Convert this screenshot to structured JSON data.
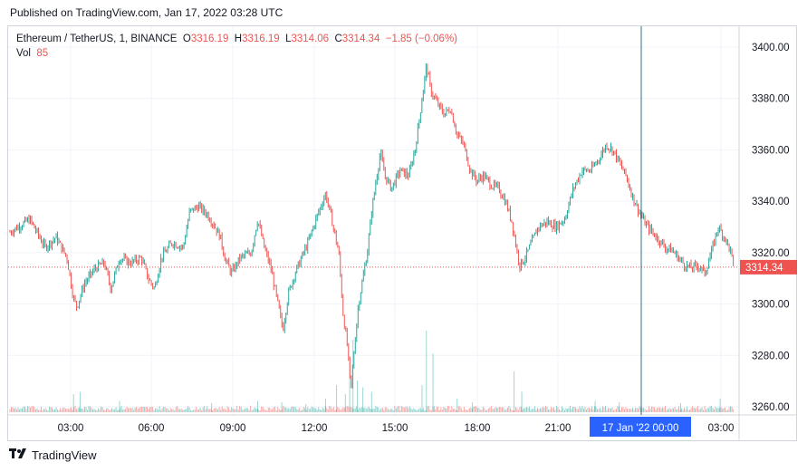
{
  "header": {
    "published": "Published on TradingView.com, Jan 17, 2022 03:28 UTC"
  },
  "legend": {
    "symbol": "Ethereum / TetherUS, 1, BINANCE",
    "o_label": "O",
    "o_value": "3316.19",
    "h_label": "H",
    "h_value": "3316.19",
    "l_label": "L",
    "l_value": "3314.06",
    "c_label": "C",
    "c_value": "3314.34",
    "change": "−1.85 (−0.06%)",
    "vol_label": "Vol",
    "vol_value": "85"
  },
  "footer": {
    "brand": "TradingView",
    "logo_icon": "tradingview-logo-icon"
  },
  "chart_data": {
    "type": "candlestick",
    "symbol": "Ethereum / TetherUS",
    "interval": "1",
    "exchange": "BINANCE",
    "x_ticks": [
      "03:00",
      "06:00",
      "09:00",
      "12:00",
      "15:00",
      "18:00",
      "21:00",
      "03:00"
    ],
    "crosshair_label": "17 Jan '22   00:00",
    "y_ticks": [
      "3260.00",
      "3280.00",
      "3300.00",
      "3320.00",
      "3340.00",
      "3360.00",
      "3380.00",
      "3400.00"
    ],
    "ylim": [
      3256,
      3406
    ],
    "last_price": 3314.34,
    "last_price_label": "3314.34",
    "up_color": "#26a69a",
    "down_color": "#ef5350",
    "price_path": [
      [
        0.0,
        3328
      ],
      [
        0.9,
        3333
      ],
      [
        1.6,
        3322
      ],
      [
        2.1,
        3326
      ],
      [
        2.6,
        3318
      ],
      [
        2.9,
        3302
      ],
      [
        3.05,
        3299
      ],
      [
        3.4,
        3308
      ],
      [
        3.9,
        3314
      ],
      [
        4.3,
        3316
      ],
      [
        4.6,
        3306
      ],
      [
        5.0,
        3318
      ],
      [
        5.5,
        3316
      ],
      [
        6.0,
        3318
      ],
      [
        6.3,
        3310
      ],
      [
        6.6,
        3306
      ],
      [
        6.9,
        3318
      ],
      [
        7.4,
        3324
      ],
      [
        7.9,
        3322
      ],
      [
        8.2,
        3336
      ],
      [
        8.6,
        3338
      ],
      [
        9.0,
        3335
      ],
      [
        9.3,
        3331
      ],
      [
        9.6,
        3326
      ],
      [
        9.8,
        3318
      ],
      [
        10.1,
        3312
      ],
      [
        10.5,
        3318
      ],
      [
        11.0,
        3320
      ],
      [
        11.3,
        3333
      ],
      [
        11.6,
        3322
      ],
      [
        11.9,
        3314
      ],
      [
        12.2,
        3301
      ],
      [
        12.45,
        3290
      ],
      [
        12.7,
        3304
      ],
      [
        13.0,
        3312
      ],
      [
        13.3,
        3318
      ],
      [
        13.6,
        3324
      ],
      [
        14.0,
        3334
      ],
      [
        14.4,
        3343
      ],
      [
        14.7,
        3332
      ],
      [
        15.0,
        3320
      ],
      [
        15.2,
        3296
      ],
      [
        15.4,
        3283
      ],
      [
        15.55,
        3266
      ],
      [
        15.7,
        3282
      ],
      [
        15.9,
        3300
      ],
      [
        16.1,
        3310
      ],
      [
        16.3,
        3320
      ],
      [
        16.5,
        3336
      ],
      [
        16.7,
        3348
      ],
      [
        16.9,
        3359
      ],
      [
        17.1,
        3350
      ],
      [
        17.4,
        3345
      ],
      [
        17.8,
        3352
      ],
      [
        18.2,
        3350
      ],
      [
        18.5,
        3361
      ],
      [
        18.8,
        3380
      ],
      [
        19.0,
        3393
      ],
      [
        19.2,
        3383
      ],
      [
        19.5,
        3378
      ],
      [
        19.8,
        3374
      ],
      [
        20.1,
        3376
      ],
      [
        20.4,
        3366
      ],
      [
        20.7,
        3362
      ],
      [
        21.0,
        3352
      ],
      [
        21.3,
        3348
      ],
      [
        21.6,
        3350
      ],
      [
        22.0,
        3346
      ],
      [
        22.3,
        3345
      ],
      [
        22.6,
        3340
      ],
      [
        22.9,
        3332
      ],
      [
        23.1,
        3322
      ],
      [
        23.25,
        3315
      ],
      [
        23.5,
        3318
      ],
      [
        23.8,
        3324
      ],
      [
        24.1,
        3330
      ],
      [
        24.5,
        3332
      ],
      [
        24.9,
        3330
      ],
      [
        25.3,
        3333
      ],
      [
        25.7,
        3345
      ],
      [
        26.1,
        3352
      ],
      [
        26.5,
        3352
      ],
      [
        26.9,
        3357
      ],
      [
        27.2,
        3362
      ],
      [
        27.5,
        3360
      ],
      [
        27.8,
        3355
      ],
      [
        28.1,
        3350
      ],
      [
        28.4,
        3342
      ],
      [
        28.7,
        3336
      ],
      [
        29.0,
        3331
      ],
      [
        29.3,
        3328
      ],
      [
        29.6,
        3325
      ],
      [
        29.9,
        3322
      ],
      [
        30.2,
        3321
      ],
      [
        30.5,
        3318
      ],
      [
        30.8,
        3315
      ],
      [
        31.1,
        3314
      ],
      [
        31.4,
        3315
      ],
      [
        31.7,
        3312
      ],
      [
        32.0,
        3320
      ],
      [
        32.3,
        3330
      ],
      [
        32.6,
        3326
      ],
      [
        32.9,
        3320
      ],
      [
        33.0,
        3314.34
      ]
    ],
    "volume_spikes": [
      [
        2.9,
        40
      ],
      [
        3.2,
        45
      ],
      [
        5.0,
        25
      ],
      [
        9.2,
        20
      ],
      [
        11.3,
        25
      ],
      [
        12.4,
        22
      ],
      [
        13.5,
        18
      ],
      [
        14.4,
        30
      ],
      [
        14.9,
        60
      ],
      [
        15.3,
        40
      ],
      [
        15.5,
        110
      ],
      [
        15.65,
        160
      ],
      [
        15.85,
        70
      ],
      [
        16.1,
        55
      ],
      [
        16.5,
        45
      ],
      [
        18.8,
        60
      ],
      [
        19.0,
        180
      ],
      [
        19.3,
        130
      ],
      [
        20.4,
        30
      ],
      [
        21.1,
        22
      ],
      [
        23.0,
        90
      ],
      [
        23.35,
        45
      ],
      [
        26.7,
        25
      ],
      [
        27.8,
        22
      ],
      [
        30.6,
        20
      ],
      [
        32.4,
        30
      ]
    ]
  }
}
